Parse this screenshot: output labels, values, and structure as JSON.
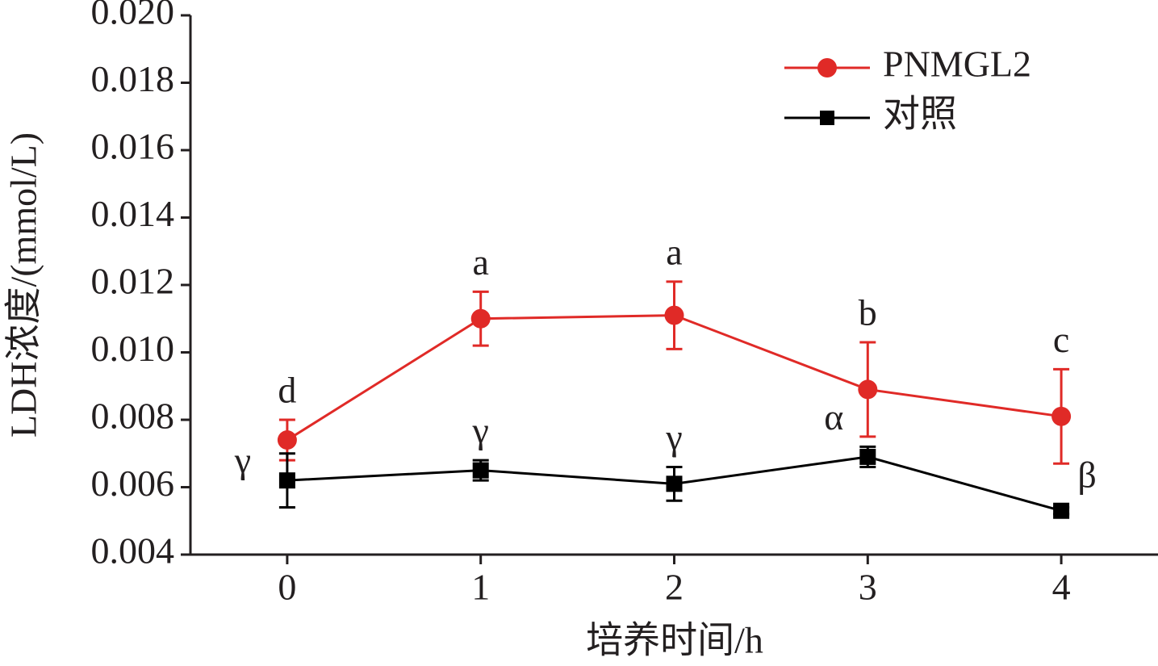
{
  "chart_data": {
    "type": "line",
    "x_label": "培养时间/h",
    "y_label": "LDH浓度/(mmol/L)",
    "x": [
      0,
      1,
      2,
      3,
      4
    ],
    "xlim": [
      -0.5,
      4.5
    ],
    "xticks": [
      0,
      1,
      2,
      3,
      4
    ],
    "ylim": [
      0.004,
      0.02
    ],
    "yticks": [
      0.004,
      0.006,
      0.008,
      {
        "value": 0.01,
        "label": "0.010"
      },
      0.012,
      0.014,
      0.016,
      0.018,
      {
        "value": 0.02,
        "label": "0.020"
      }
    ],
    "grid": false,
    "legend": "upper right",
    "series": [
      {
        "name": "PNMGL2",
        "color": "#e02a27",
        "marker": "circle",
        "values": [
          0.0074,
          0.011,
          0.0111,
          0.0089,
          0.0081
        ],
        "errors": [
          0.0006,
          0.0008,
          0.001,
          0.0014,
          0.0014
        ],
        "annotations": [
          "d",
          "a",
          "a",
          "b",
          "c"
        ]
      },
      {
        "name": "对照",
        "color": "#000000",
        "marker": "square",
        "values": [
          0.0062,
          0.0065,
          0.0061,
          0.0069,
          0.0053
        ],
        "errors": [
          0.0008,
          0.0003,
          0.0005,
          0.0003,
          0.0001
        ],
        "annotations": [
          "γ",
          "γ",
          "γ",
          "α",
          "β"
        ]
      }
    ]
  }
}
